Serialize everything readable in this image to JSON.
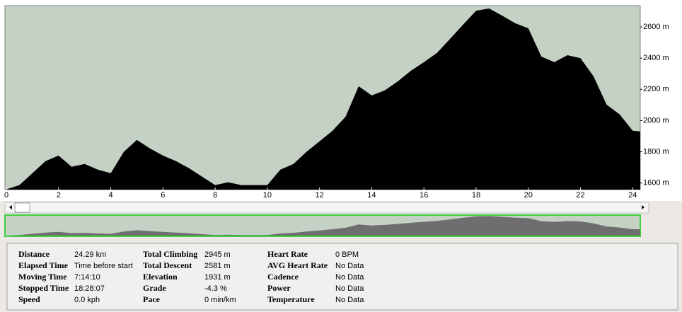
{
  "chart_data": {
    "type": "area",
    "x": [
      0,
      0.5,
      1,
      1.5,
      2,
      2.5,
      3,
      3.5,
      4,
      4.5,
      5,
      5.5,
      6,
      6.5,
      7,
      7.5,
      8,
      8.5,
      9,
      9.5,
      10,
      10.5,
      11,
      11.5,
      12,
      12.5,
      13,
      13.5,
      14,
      14.5,
      15,
      15.5,
      16,
      16.5,
      17,
      17.5,
      18,
      18.5,
      19,
      19.5,
      20,
      20.5,
      21,
      21.5,
      22,
      22.5,
      23,
      23.5,
      24,
      24.29
    ],
    "values": [
      1560,
      1587,
      1663,
      1740,
      1776,
      1704,
      1722,
      1686,
      1663,
      1800,
      1876,
      1822,
      1776,
      1740,
      1695,
      1641,
      1587,
      1605,
      1587,
      1587,
      1587,
      1686,
      1722,
      1800,
      1867,
      1935,
      2025,
      2220,
      2161,
      2193,
      2251,
      2319,
      2374,
      2433,
      2523,
      2614,
      2704,
      2718,
      2672,
      2623,
      2591,
      2410,
      2374,
      2419,
      2400,
      2283,
      2102,
      2039,
      1935,
      1931
    ],
    "color": "#000000",
    "overview_color": "#6e6e6e",
    "background": "#c4d1c4",
    "xlim": [
      0,
      24.29
    ],
    "ylim": [
      1558,
      2736
    ],
    "xticks": [
      0,
      2,
      4,
      6,
      8,
      10,
      12,
      14,
      16,
      18,
      20,
      22,
      24
    ],
    "yticks": [
      {
        "value": 1600,
        "label": "1600 m"
      },
      {
        "value": 1800,
        "label": "1800 m"
      },
      {
        "value": 2000,
        "label": "2000 m"
      },
      {
        "value": 2200,
        "label": "2200 m"
      },
      {
        "value": 2400,
        "label": "2400 m"
      },
      {
        "value": 2600,
        "label": "2600 m"
      }
    ]
  },
  "stats": {
    "columns": [
      [
        {
          "label": "Distance",
          "value": "24.29 km"
        },
        {
          "label": "Elapsed Time",
          "value": "Time before start"
        },
        {
          "label": "Moving Time",
          "value": "7:14:10"
        },
        {
          "label": "Stopped Time",
          "value": "18:28:07"
        },
        {
          "label": "Speed",
          "value": "0.0 kph"
        }
      ],
      [
        {
          "label": "Total Climbing",
          "value": "2945 m"
        },
        {
          "label": "Total Descent",
          "value": "2581 m"
        },
        {
          "label": "Elevation",
          "value": "1931 m"
        },
        {
          "label": "Grade",
          "value": "-4.3 %"
        },
        {
          "label": "Pace",
          "value": "0 min/km"
        }
      ],
      [
        {
          "label": "Heart Rate",
          "value": "0 BPM"
        },
        {
          "label": "AVG Heart Rate",
          "value": "No Data"
        },
        {
          "label": "Cadence",
          "value": "No Data"
        },
        {
          "label": "Power",
          "value": "No Data"
        },
        {
          "label": "Temperature",
          "value": "No Data"
        }
      ]
    ]
  }
}
